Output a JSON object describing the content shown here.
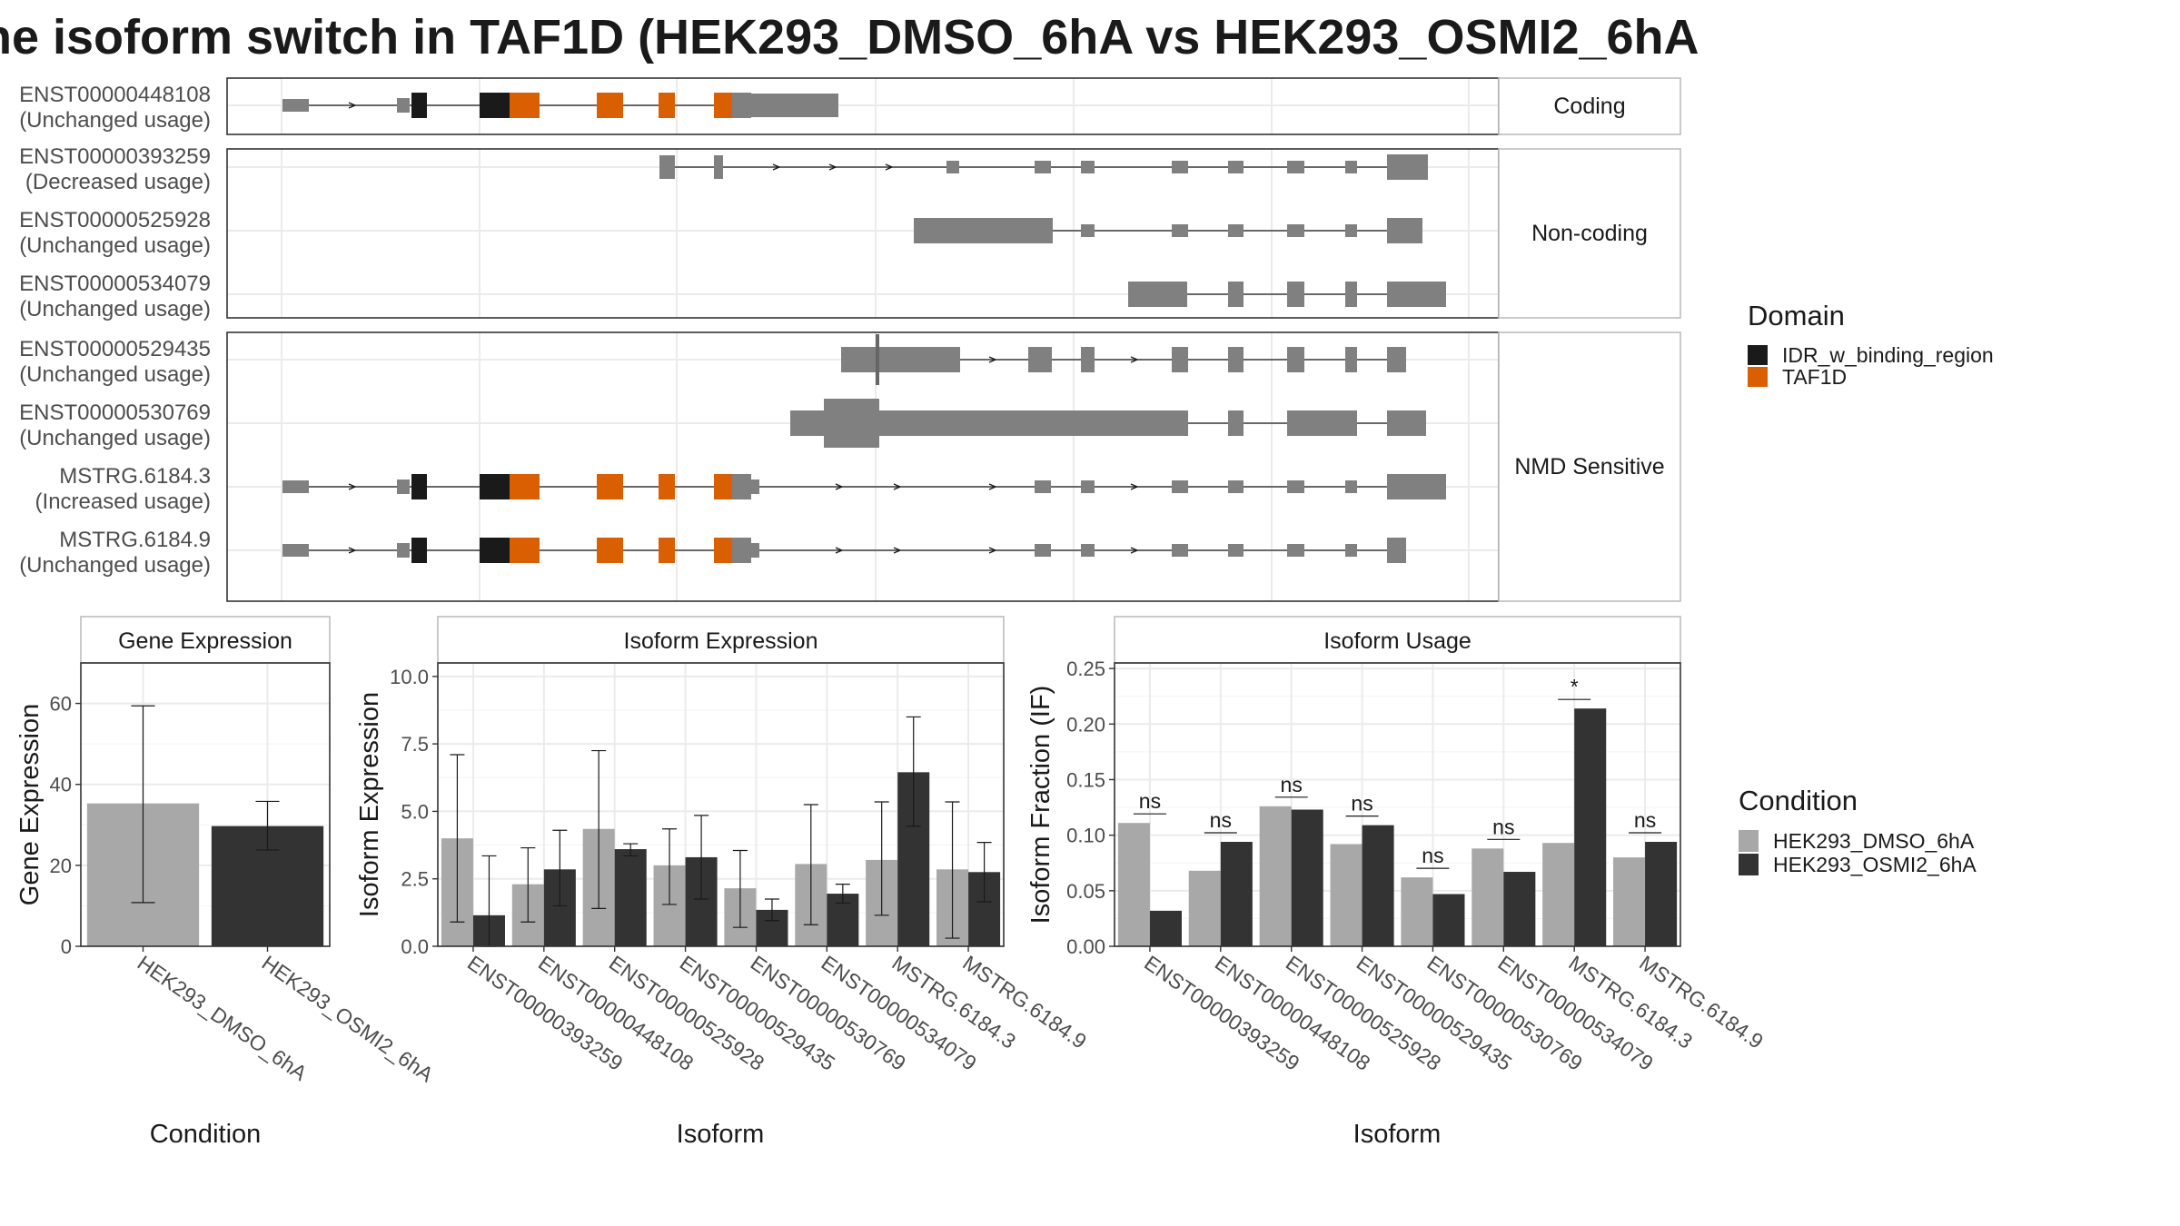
{
  "title": "he isoform switch in TAF1D (HEK293_DMSO_6hA vs HEK293_OSMI2_6hA",
  "colors": {
    "IDR_w_binding_region": "#1a1a1a",
    "TAF1D": "#d95f02",
    "transcript_gray": "#808080",
    "HEK293_DMSO_6hA": "#a8a8a8",
    "HEK293_OSMI2_6hA": "#333333",
    "grid": "#ebebeb"
  },
  "domain_legend": {
    "title": "Domain",
    "items": [
      "IDR_w_binding_region",
      "TAF1D"
    ]
  },
  "condition_legend": {
    "title": "Condition",
    "items": [
      "HEK293_DMSO_6hA",
      "HEK293_OSMI2_6hA"
    ]
  },
  "transcript_panels": [
    {
      "strip": "Coding",
      "transcripts": [
        {
          "id": "ENST00000448108",
          "usage": "(Unchanged usage)"
        }
      ]
    },
    {
      "strip": "Non-coding",
      "transcripts": [
        {
          "id": "ENST00000393259",
          "usage": "(Decreased usage)"
        },
        {
          "id": "ENST00000525928",
          "usage": "(Unchanged usage)"
        },
        {
          "id": "ENST00000534079",
          "usage": "(Unchanged usage)"
        }
      ]
    },
    {
      "strip": "NMD Sensitive",
      "transcripts": [
        {
          "id": "ENST00000529435",
          "usage": "(Unchanged usage)"
        },
        {
          "id": "ENST00000530769",
          "usage": "(Unchanged usage)"
        },
        {
          "id": "MSTRG.6184.3",
          "usage": "(Increased usage)"
        },
        {
          "id": "MSTRG.6184.9",
          "usage": "(Unchanged usage)"
        }
      ]
    }
  ],
  "chart_data": [
    {
      "type": "bar",
      "title": "Gene Expression",
      "xlabel": "Condition",
      "ylabel": "Gene Expression",
      "categories": [
        "HEK293_DMSO_6hA",
        "HEK293_OSMI2_6hA"
      ],
      "values": [
        35.3,
        29.7
      ],
      "error_low": [
        10.8,
        23.8
      ],
      "error_high": [
        59.4,
        35.8
      ],
      "ylim": [
        0,
        70
      ],
      "yticks": [
        "0",
        "20",
        "40",
        "60"
      ]
    },
    {
      "type": "bar",
      "title": "Isoform Expression",
      "xlabel": "Isoform",
      "ylabel": "Isoform Expression",
      "categories": [
        "ENST00000393259",
        "ENST00000448108",
        "ENST00000525928",
        "ENST00000529435",
        "ENST00000530769",
        "ENST00000534079",
        "MSTRG.6184.3",
        "MSTRG.6184.9"
      ],
      "series": [
        {
          "name": "HEK293_DMSO_6hA",
          "values": [
            4.0,
            2.3,
            4.35,
            3.0,
            2.15,
            3.05,
            3.2,
            2.85
          ],
          "error_low": [
            0.9,
            0.9,
            1.4,
            1.55,
            0.7,
            0.8,
            1.15,
            0.3
          ],
          "error_high": [
            7.1,
            3.65,
            7.25,
            4.35,
            3.55,
            5.25,
            5.35,
            5.35
          ]
        },
        {
          "name": "HEK293_OSMI2_6hA",
          "values": [
            1.15,
            2.85,
            3.6,
            3.3,
            1.35,
            1.95,
            6.45,
            2.75
          ],
          "error_low": [
            0.0,
            1.5,
            3.35,
            1.75,
            0.95,
            1.6,
            4.45,
            1.65
          ],
          "error_high": [
            3.35,
            4.3,
            3.8,
            4.85,
            1.75,
            2.3,
            8.5,
            3.85
          ]
        }
      ],
      "ylim": [
        0,
        10.5
      ],
      "yticks": [
        "0.0",
        "2.5",
        "5.0",
        "7.5",
        "10.0"
      ]
    },
    {
      "type": "bar",
      "title": "Isoform Usage",
      "xlabel": "Isoform",
      "ylabel": "Isoform Fraction (IF)",
      "categories": [
        "ENST00000393259",
        "ENST00000448108",
        "ENST00000525928",
        "ENST00000529435",
        "ENST00000530769",
        "ENST00000534079",
        "MSTRG.6184.3",
        "MSTRG.6184.9"
      ],
      "series": [
        {
          "name": "HEK293_DMSO_6hA",
          "values": [
            0.111,
            0.068,
            0.126,
            0.092,
            0.062,
            0.088,
            0.093,
            0.08
          ]
        },
        {
          "name": "HEK293_OSMI2_6hA",
          "values": [
            0.032,
            0.094,
            0.123,
            0.109,
            0.047,
            0.067,
            0.214,
            0.094
          ]
        }
      ],
      "significance": [
        "ns",
        "ns",
        "ns",
        "ns",
        "ns",
        "ns",
        "*",
        "ns"
      ],
      "ylim": [
        0,
        0.255
      ],
      "yticks": [
        "0.00",
        "0.05",
        "0.10",
        "0.15",
        "0.20",
        "0.25"
      ]
    }
  ]
}
